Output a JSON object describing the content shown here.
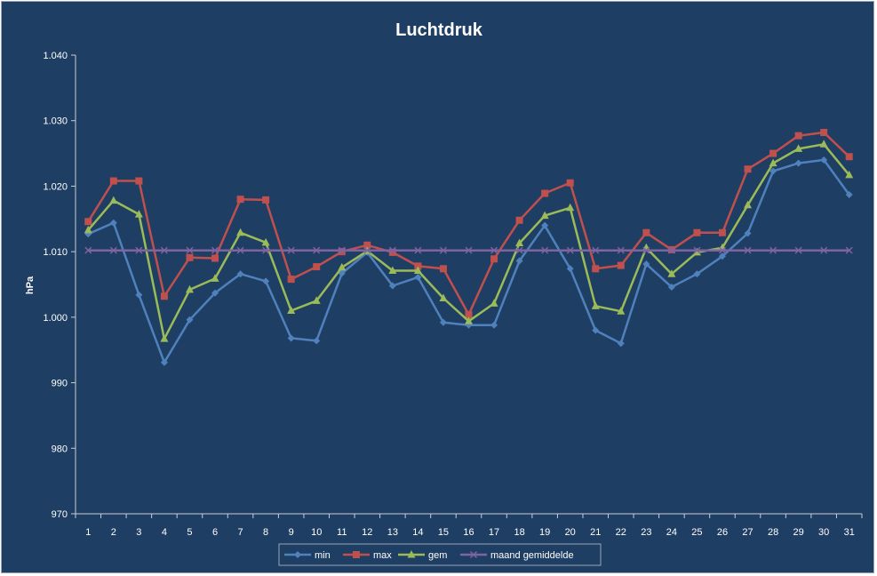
{
  "chart_data": {
    "type": "line",
    "title": "Luchtdruk",
    "xlabel": "",
    "ylabel": "hPa",
    "ylim": [
      970,
      1040
    ],
    "y_ticks": [
      970,
      980,
      990,
      1000,
      1010,
      1020,
      1030,
      1040
    ],
    "y_tick_labels": [
      "970",
      "980",
      "990",
      "1.000",
      "1.010",
      "1.020",
      "1.030",
      "1.040"
    ],
    "categories": [
      "1",
      "2",
      "3",
      "4",
      "5",
      "6",
      "7",
      "8",
      "9",
      "10",
      "11",
      "12",
      "13",
      "14",
      "15",
      "16",
      "17",
      "18",
      "19",
      "20",
      "21",
      "22",
      "23",
      "24",
      "25",
      "26",
      "27",
      "28",
      "29",
      "30",
      "31"
    ],
    "grid": false,
    "legend_position": "bottom",
    "series": [
      {
        "name": "min",
        "color": "#4f81bd",
        "marker": "diamond",
        "values": [
          1012.7,
          1014.4,
          1003.4,
          993.1,
          999.6,
          1003.7,
          1006.6,
          1005.5,
          996.8,
          996.4,
          1006.7,
          1009.9,
          1004.8,
          1006.1,
          999.2,
          998.8,
          998.8,
          1008.6,
          1014.0,
          1007.4,
          998.0,
          996.0,
          1008.1,
          1004.6,
          1006.6,
          1009.3,
          1012.8,
          1022.3,
          1023.5,
          1024.0,
          1018.7
        ]
      },
      {
        "name": "max",
        "color": "#c0504d",
        "marker": "square",
        "values": [
          1014.6,
          1020.8,
          1020.8,
          1003.2,
          1009.1,
          1009.0,
          1018.0,
          1017.9,
          1005.8,
          1007.7,
          1010.0,
          1011.0,
          1009.9,
          1007.8,
          1007.4,
          1000.4,
          1008.9,
          1014.8,
          1018.9,
          1020.5,
          1007.4,
          1007.9,
          1012.9,
          1010.3,
          1012.9,
          1012.9,
          1022.6,
          1025.0,
          1027.7,
          1028.2,
          1024.5
        ]
      },
      {
        "name": "gem",
        "color": "#9bbb59",
        "marker": "triangle",
        "values": [
          1013.3,
          1017.8,
          1015.7,
          996.7,
          1004.2,
          1005.9,
          1012.9,
          1011.4,
          1001.0,
          1002.5,
          1007.6,
          1010.1,
          1007.1,
          1007.1,
          1002.9,
          999.4,
          1002.1,
          1011.3,
          1015.5,
          1016.7,
          1001.7,
          1000.9,
          1010.6,
          1006.6,
          1009.9,
          1010.6,
          1017.1,
          1023.5,
          1025.7,
          1026.4,
          1021.7
        ]
      },
      {
        "name": "maand gemiddelde",
        "color": "#8064a2",
        "marker": "x",
        "values": [
          1010.2,
          1010.2,
          1010.2,
          1010.2,
          1010.2,
          1010.2,
          1010.2,
          1010.2,
          1010.2,
          1010.2,
          1010.2,
          1010.2,
          1010.2,
          1010.2,
          1010.2,
          1010.2,
          1010.2,
          1010.2,
          1010.2,
          1010.2,
          1010.2,
          1010.2,
          1010.2,
          1010.2,
          1010.2,
          1010.2,
          1010.2,
          1010.2,
          1010.2,
          1010.2,
          1010.2
        ]
      }
    ]
  }
}
